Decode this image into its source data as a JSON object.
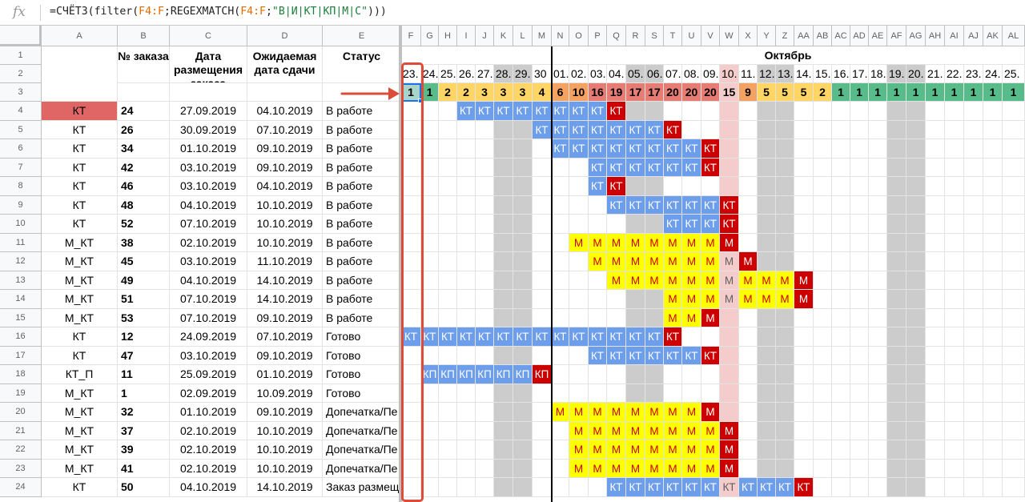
{
  "formula": {
    "parts": [
      {
        "t": "=СЧЁТЗ(filter(",
        "c": ""
      },
      {
        "t": "F4:F",
        "c": "r"
      },
      {
        "t": ";REGEXMATCH(",
        "c": ""
      },
      {
        "t": "F4:F",
        "c": "r"
      },
      {
        "t": ";",
        "c": ""
      },
      {
        "t": "\"В|И|КТ|КП|М|С\"",
        "c": "g"
      },
      {
        "t": ")))",
        "c": ""
      }
    ]
  },
  "colors": {
    "blue": "#6d9eeb",
    "red": "#cc0000",
    "yellow": "#ffff00",
    "gray": "#cccccc",
    "pink": "#f4cccc",
    "tealSel": "#a9d4c9",
    "salmon": "#e06666",
    "h_green": "#57bb8a",
    "h_yellow": "#ffd666",
    "h_orange": "#f4a261",
    "h_red": "#e67c73",
    "h_pink": "#f4cccc"
  },
  "columns": [
    "A",
    "B",
    "C",
    "D",
    "E",
    "F",
    "G",
    "H",
    "I",
    "J",
    "K",
    "L",
    "M",
    "N",
    "O",
    "P",
    "Q",
    "R",
    "S",
    "T",
    "U",
    "V",
    "W",
    "X",
    "Y",
    "Z",
    "AA",
    "AB",
    "AC",
    "AD",
    "AE",
    "AF",
    "AG",
    "AH",
    "AI",
    "AJ",
    "AK",
    "AL"
  ],
  "rownums": [
    "1",
    "2",
    "3",
    "4",
    "5",
    "6",
    "7",
    "8",
    "9",
    "10",
    "11",
    "12",
    "13",
    "14",
    "15",
    "16",
    "17",
    "18",
    "19",
    "20",
    "21",
    "22",
    "23",
    "24"
  ],
  "headers": {
    "b": "№ заказа",
    "c": "Дата размещения заказа",
    "d": "Ожидаемая дата сдачи",
    "e": "Статус"
  },
  "month": "Октябрь",
  "dates": [
    "23.",
    "24.",
    "25.",
    "26.",
    "27.",
    "28.",
    "29.",
    "30",
    "01.",
    "02.",
    "03.",
    "04.",
    "05.",
    "06.",
    "07.",
    "08.",
    "09.",
    "10.",
    "11.",
    "12.",
    "13.",
    "14.",
    "15.",
    "16.",
    "17.",
    "18.",
    "19.",
    "20.",
    "21.",
    "22.",
    "23.",
    "24.",
    "25."
  ],
  "counts": [
    "1",
    "1",
    "2",
    "2",
    "3",
    "3",
    "3",
    "4",
    "6",
    "10",
    "16",
    "19",
    "17",
    "17",
    "20",
    "20",
    "20",
    "15",
    "9",
    "5",
    "5",
    "5",
    "2",
    "1",
    "1",
    "1",
    "1",
    "1",
    "1",
    "1",
    "1",
    "1",
    "1"
  ],
  "countColors": [
    "tealSel",
    "h_green",
    "h_yellow",
    "h_yellow",
    "h_yellow",
    "h_yellow",
    "h_yellow",
    "h_yellow",
    "h_orange",
    "h_orange",
    "h_red",
    "h_red",
    "h_red",
    "h_red",
    "h_red",
    "h_red",
    "h_red",
    "h_pink",
    "h_orange",
    "h_yellow",
    "h_yellow",
    "h_yellow",
    "h_yellow",
    "h_green",
    "h_green",
    "h_green",
    "h_green",
    "h_green",
    "h_green",
    "h_green",
    "h_green",
    "h_green",
    "h_green"
  ],
  "grayCols": [
    5,
    6,
    12,
    13,
    19,
    20,
    26,
    27,
    33
  ],
  "pinkCol": 17,
  "rows": [
    {
      "a": "КТ",
      "b": "24",
      "c": "27.09.2019",
      "d": "04.10.2019",
      "e": "В работе",
      "aHi": true,
      "cells": [
        {
          "from": 3,
          "to": 10,
          "v": "КТ",
          "k": "blue"
        },
        {
          "from": 11,
          "to": 11,
          "v": "КТ",
          "k": "red"
        }
      ]
    },
    {
      "a": "КТ",
      "b": "26",
      "c": "30.09.2019",
      "d": "07.10.2019",
      "e": "В работе",
      "cells": [
        {
          "from": 7,
          "to": 13,
          "v": "КТ",
          "k": "blue"
        },
        {
          "from": 14,
          "to": 14,
          "v": "КТ",
          "k": "red"
        }
      ]
    },
    {
      "a": "КТ",
      "b": "34",
      "c": "01.10.2019",
      "d": "09.10.2019",
      "e": "В работе",
      "cells": [
        {
          "from": 8,
          "to": 15,
          "v": "КТ",
          "k": "blue"
        },
        {
          "from": 16,
          "to": 16,
          "v": "КТ",
          "k": "red"
        }
      ]
    },
    {
      "a": "КТ",
      "b": "42",
      "c": "03.10.2019",
      "d": "09.10.2019",
      "e": "В работе",
      "cells": [
        {
          "from": 10,
          "to": 15,
          "v": "КТ",
          "k": "blue"
        },
        {
          "from": 16,
          "to": 16,
          "v": "КТ",
          "k": "red"
        }
      ]
    },
    {
      "a": "КТ",
      "b": "46",
      "c": "03.10.2019",
      "d": "04.10.2019",
      "e": "В работе",
      "cells": [
        {
          "from": 10,
          "to": 10,
          "v": "КТ",
          "k": "blue"
        },
        {
          "from": 11,
          "to": 11,
          "v": "КТ",
          "k": "red"
        }
      ]
    },
    {
      "a": "КТ",
      "b": "48",
      "c": "04.10.2019",
      "d": "10.10.2019",
      "e": "В работе",
      "cells": [
        {
          "from": 11,
          "to": 16,
          "v": "КТ",
          "k": "blue"
        },
        {
          "from": 17,
          "to": 17,
          "v": "КТ",
          "k": "red"
        }
      ]
    },
    {
      "a": "КТ",
      "b": "52",
      "c": "07.10.2019",
      "d": "10.10.2019",
      "e": "В работе",
      "cells": [
        {
          "from": 14,
          "to": 16,
          "v": "КТ",
          "k": "blue"
        },
        {
          "from": 17,
          "to": 17,
          "v": "КТ",
          "k": "red"
        }
      ]
    },
    {
      "a": "М_КТ",
      "b": "38",
      "c": "02.10.2019",
      "d": "10.10.2019",
      "e": "В работе",
      "cells": [
        {
          "from": 9,
          "to": 16,
          "v": "М",
          "k": "yellow"
        },
        {
          "from": 17,
          "to": 17,
          "v": "М",
          "k": "red"
        }
      ]
    },
    {
      "a": "М_КТ",
      "b": "45",
      "c": "03.10.2019",
      "d": "11.10.2019",
      "e": "В работе",
      "cells": [
        {
          "from": 10,
          "to": 16,
          "v": "М",
          "k": "yellow"
        },
        {
          "from": 17,
          "to": 17,
          "v": "М",
          "k": "pink"
        },
        {
          "from": 18,
          "to": 18,
          "v": "М",
          "k": "red"
        }
      ]
    },
    {
      "a": "М_КТ",
      "b": "49",
      "c": "04.10.2019",
      "d": "14.10.2019",
      "e": "В работе",
      "cells": [
        {
          "from": 11,
          "to": 16,
          "v": "М",
          "k": "yellow"
        },
        {
          "from": 17,
          "to": 17,
          "v": "М",
          "k": "pink"
        },
        {
          "from": 18,
          "to": 20,
          "v": "М",
          "k": "yellow"
        },
        {
          "from": 21,
          "to": 21,
          "v": "М",
          "k": "red"
        }
      ]
    },
    {
      "a": "М_КТ",
      "b": "51",
      "c": "07.10.2019",
      "d": "14.10.2019",
      "e": "В работе",
      "cells": [
        {
          "from": 14,
          "to": 16,
          "v": "М",
          "k": "yellow"
        },
        {
          "from": 17,
          "to": 17,
          "v": "М",
          "k": "pink"
        },
        {
          "from": 18,
          "to": 20,
          "v": "М",
          "k": "yellow"
        },
        {
          "from": 21,
          "to": 21,
          "v": "М",
          "k": "red"
        }
      ]
    },
    {
      "a": "М_КТ",
      "b": "53",
      "c": "07.10.2019",
      "d": "09.10.2019",
      "e": "В работе",
      "cells": [
        {
          "from": 14,
          "to": 15,
          "v": "М",
          "k": "yellow"
        },
        {
          "from": 16,
          "to": 16,
          "v": "М",
          "k": "red"
        }
      ]
    },
    {
      "a": "КТ",
      "b": "12",
      "c": "24.09.2019",
      "d": "07.10.2019",
      "e": "Готово",
      "cells": [
        {
          "from": 0,
          "to": 13,
          "v": "КТ",
          "k": "blue"
        },
        {
          "from": 14,
          "to": 14,
          "v": "КТ",
          "k": "red"
        }
      ]
    },
    {
      "a": "КТ",
      "b": "47",
      "c": "03.10.2019",
      "d": "09.10.2019",
      "e": "Готово",
      "cells": [
        {
          "from": 10,
          "to": 15,
          "v": "КТ",
          "k": "blue"
        },
        {
          "from": 16,
          "to": 16,
          "v": "КТ",
          "k": "red"
        }
      ]
    },
    {
      "a": "КТ_П",
      "b": "11",
      "c": "25.09.2019",
      "d": "01.10.2019",
      "e": "Готово",
      "cells": [
        {
          "from": 1,
          "to": 6,
          "v": "КП",
          "k": "blue"
        },
        {
          "from": 7,
          "to": 7,
          "v": "КП",
          "k": "red"
        }
      ]
    },
    {
      "a": "М_КТ",
      "b": "1",
      "c": "02.09.2019",
      "d": "10.09.2019",
      "e": "Готово",
      "cells": []
    },
    {
      "a": "М_КТ",
      "b": "32",
      "c": "01.10.2019",
      "d": "09.10.2019",
      "e": "Допечатка/Пе",
      "cells": [
        {
          "from": 8,
          "to": 15,
          "v": "М",
          "k": "yellow"
        },
        {
          "from": 16,
          "to": 16,
          "v": "М",
          "k": "red"
        }
      ]
    },
    {
      "a": "М_КТ",
      "b": "37",
      "c": "02.10.2019",
      "d": "10.10.2019",
      "e": "Допечатка/Пе",
      "cells": [
        {
          "from": 9,
          "to": 16,
          "v": "М",
          "k": "yellow"
        },
        {
          "from": 17,
          "to": 17,
          "v": "М",
          "k": "red"
        }
      ]
    },
    {
      "a": "М_КТ",
      "b": "39",
      "c": "02.10.2019",
      "d": "10.10.2019",
      "e": "Допечатка/Пе",
      "cells": [
        {
          "from": 9,
          "to": 16,
          "v": "М",
          "k": "yellow"
        },
        {
          "from": 17,
          "to": 17,
          "v": "М",
          "k": "red"
        }
      ]
    },
    {
      "a": "М_КТ",
      "b": "41",
      "c": "02.10.2019",
      "d": "10.10.2019",
      "e": "Допечатка/Пе",
      "cells": [
        {
          "from": 9,
          "to": 16,
          "v": "М",
          "k": "yellow"
        },
        {
          "from": 17,
          "to": 17,
          "v": "М",
          "k": "red"
        }
      ]
    },
    {
      "a": "КТ",
      "b": "50",
      "c": "04.10.2019",
      "d": "14.10.2019",
      "e": "Заказ размещ",
      "cells": [
        {
          "from": 11,
          "to": 16,
          "v": "КТ",
          "k": "blue"
        },
        {
          "from": 17,
          "to": 17,
          "v": "КТ",
          "k": "pink"
        },
        {
          "from": 18,
          "to": 20,
          "v": "КТ",
          "k": "blue"
        },
        {
          "from": 21,
          "to": 21,
          "v": "КТ",
          "k": "red"
        }
      ]
    }
  ]
}
